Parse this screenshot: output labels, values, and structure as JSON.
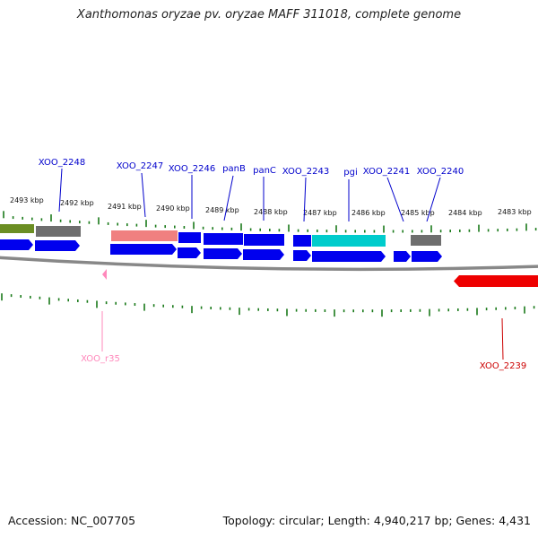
{
  "title": "Xanthomonas oryzae pv. oryzae MAFF 311018, complete genome",
  "footer": {
    "accession": "Accession: NC_007705",
    "topology": "Topology: circular; Length: 4,940,217 bp; Genes: 4,431"
  },
  "colors": {
    "gene_label": "#0000cc",
    "rna_label": "#ff88bb",
    "highlight_label": "#cc0000",
    "tick": "#1a7a1a",
    "backbone": "#888888",
    "cds_forward": "#0000ee",
    "cds_reverse": "#ee0000"
  },
  "scale_ticks": [
    "2493 kbp",
    "2492 kbp",
    "2491 kbp",
    "2490 kbp",
    "2489 kbp",
    "2488 kbp",
    "2487 kbp",
    "2486 kbp",
    "2485 kbp",
    "2484 kbp",
    "2483 kbp"
  ],
  "gene_labels": [
    {
      "name": "XOO_2248",
      "color": "#0000cc"
    },
    {
      "name": "XOO_2247",
      "color": "#0000cc"
    },
    {
      "name": "XOO_2246",
      "color": "#0000cc"
    },
    {
      "name": "panB",
      "color": "#0000cc"
    },
    {
      "name": "panC",
      "color": "#0000cc"
    },
    {
      "name": "XOO_2243",
      "color": "#0000cc"
    },
    {
      "name": "pgi",
      "color": "#0000cc"
    },
    {
      "name": "XOO_2241",
      "color": "#0000cc"
    },
    {
      "name": "XOO_2240",
      "color": "#0000cc"
    },
    {
      "name": "XOO_r35",
      "color": "#ff88bb"
    },
    {
      "name": "XOO_2239",
      "color": "#cc0000"
    }
  ],
  "feature_colors": {
    "olive": "#6b8e23",
    "gray": "#6e6e6e",
    "salmon": "#f08080",
    "blue": "#0000ee",
    "cyan": "#00cccc",
    "pink": "#ff88bb",
    "red": "#ee0000"
  }
}
